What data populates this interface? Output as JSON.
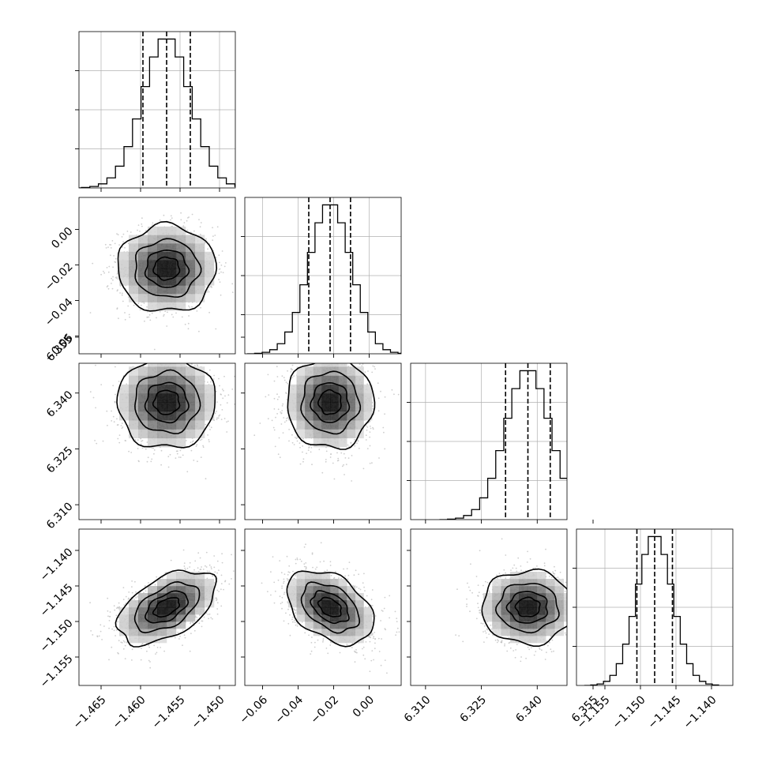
{
  "chart_data": {
    "type": "corner",
    "title": "",
    "parameters": [
      {
        "index": 0,
        "median": -1.4567,
        "quantiles": [
          -1.4597,
          -1.4567,
          -1.4537
        ],
        "sigma": 0.003,
        "range": [
          -1.4678,
          -1.448
        ],
        "ticks": [
          -1.465,
          -1.46,
          -1.455,
          -1.45
        ],
        "tick_labels": [
          "−1.465",
          "−1.460",
          "−1.455",
          "−1.450"
        ]
      },
      {
        "index": 1,
        "median": -0.022,
        "quantiles": [
          -0.034,
          -0.022,
          -0.0105
        ],
        "sigma": 0.0118,
        "range": [
          -0.07,
          0.018
        ],
        "ticks": [
          -0.06,
          -0.04,
          -0.02,
          0.0
        ],
        "tick_labels": [
          "−0.06",
          "−0.04",
          "−0.02",
          "0.00"
        ]
      },
      {
        "index": 2,
        "median": 6.3375,
        "quantiles": [
          6.3315,
          6.3375,
          6.3435
        ],
        "sigma": 0.006,
        "range": [
          6.306,
          6.348
        ],
        "ticks": [
          6.31,
          6.325,
          6.34,
          6.355
        ],
        "tick_labels": [
          "6.310",
          "6.325",
          "6.340",
          "6.355"
        ]
      },
      {
        "index": 3,
        "median": -1.148,
        "quantiles": [
          -1.1505,
          -1.148,
          -1.1455
        ],
        "sigma": 0.0025,
        "range": [
          -1.159,
          -1.137
        ],
        "ticks": [
          -1.155,
          -1.15,
          -1.145,
          -1.14
        ],
        "tick_labels": [
          "−1.155",
          "−1.150",
          "−1.145",
          "−1.140"
        ]
      }
    ],
    "correlations": [
      {
        "pair": [
          1,
          0
        ],
        "rho": 0.0
      },
      {
        "pair": [
          2,
          0
        ],
        "rho": 0.0
      },
      {
        "pair": [
          2,
          1
        ],
        "rho": 0.0
      },
      {
        "pair": [
          3,
          0
        ],
        "rho": 0.5
      },
      {
        "pair": [
          3,
          1
        ],
        "rho": -0.4
      },
      {
        "pair": [
          3,
          2
        ],
        "rho": 0.0
      }
    ],
    "histogram_bins": 20,
    "grid": true,
    "contour_levels_sigma": [
      0.5,
      1.0,
      1.5,
      2.0
    ],
    "dashed_quantile_lines": true,
    "colors": {
      "line": "#000000",
      "scatter": "#bdbdbd",
      "density_dark": "#000000",
      "grid": "#b0b0b0"
    }
  }
}
